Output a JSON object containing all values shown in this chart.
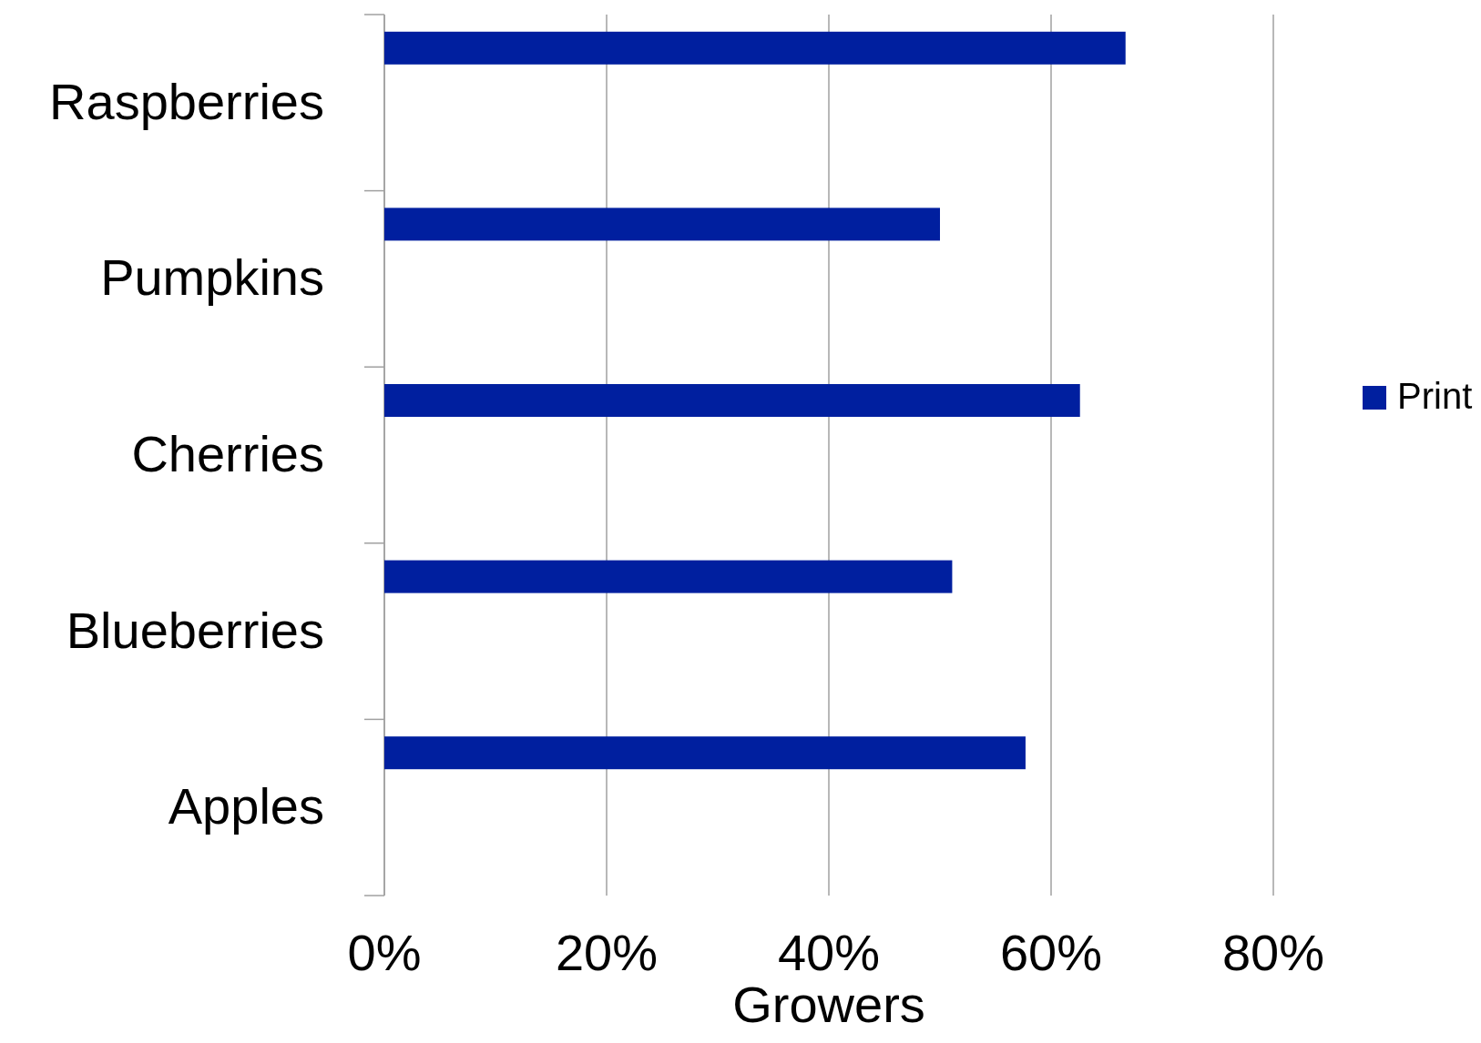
{
  "chart_data": {
    "type": "bar",
    "orientation": "horizontal",
    "xlabel": "Growers",
    "categories": [
      "Raspberries",
      "Pumpkins",
      "Cherries",
      "Blueberries",
      "Apples"
    ],
    "series": [
      {
        "name": "Print",
        "color": "#001f9f",
        "values": [
          66.7,
          50,
          62.6,
          51.1,
          57.7
        ]
      }
    ],
    "xlim": [
      0,
      80
    ],
    "xticks": [
      {
        "value": 0,
        "label": "0%"
      },
      {
        "value": 20,
        "label": "20%"
      },
      {
        "value": 40,
        "label": "40%"
      },
      {
        "value": 60,
        "label": "60%"
      },
      {
        "value": 80,
        "label": "80%"
      }
    ],
    "grid": "x",
    "legend": "right"
  }
}
